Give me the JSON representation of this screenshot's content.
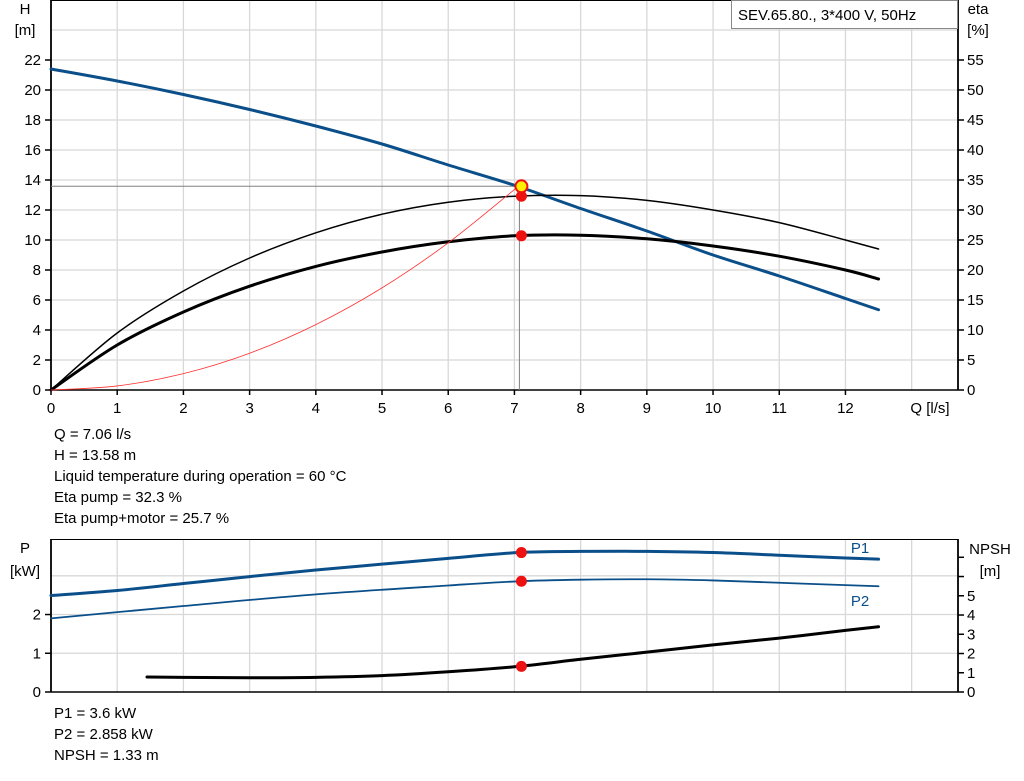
{
  "chart_data": [
    {
      "type": "line",
      "title": "SEV.65.80., 3*400 V, 50Hz",
      "xlabel": "Q [l/s]",
      "ylabel": [
        "H",
        "[m]"
      ],
      "y2label": [
        "eta",
        "[%]"
      ],
      "xlim": [
        0,
        13.7
      ],
      "ylim": [
        0,
        26
      ],
      "y2lim": [
        0,
        65
      ],
      "xticks": [
        0,
        1,
        2,
        3,
        4,
        5,
        6,
        7,
        8,
        9,
        10,
        11,
        12
      ],
      "yticks": [
        0,
        2,
        4,
        6,
        8,
        10,
        12,
        14,
        16,
        18,
        20,
        22
      ],
      "y2ticks": [
        0,
        5,
        10,
        15,
        20,
        25,
        30,
        35,
        40,
        45,
        50,
        55
      ],
      "grid": true,
      "series": [
        {
          "id": "H",
          "axis": "left",
          "color": "#0b4f8a",
          "width": 3,
          "x": [
            0,
            1,
            2,
            3,
            4,
            5,
            6,
            7,
            8,
            9,
            10,
            11,
            12,
            12.5
          ],
          "y": [
            21.4,
            20.6,
            19.7,
            18.7,
            17.6,
            16.4,
            15.0,
            13.65,
            12.1,
            10.6,
            9.0,
            7.6,
            6.1,
            5.35
          ]
        },
        {
          "id": "eta-pump",
          "axis": "right",
          "color": "#000000",
          "width": 1.5,
          "x": [
            0,
            1,
            2,
            3,
            4,
            5,
            6,
            7,
            8,
            9,
            10,
            11,
            12,
            12.5
          ],
          "y": [
            0,
            9.5,
            16.5,
            22,
            26.2,
            29.3,
            31.3,
            32.3,
            32.4,
            31.6,
            30,
            27.9,
            25,
            23.5
          ]
        },
        {
          "id": "eta-total",
          "axis": "right",
          "color": "#000000",
          "width": 3,
          "x": [
            0,
            1,
            2,
            3,
            4,
            5,
            6,
            7,
            8,
            9,
            10,
            11,
            12,
            12.5
          ],
          "y": [
            0,
            7.5,
            13,
            17.3,
            20.6,
            23,
            24.7,
            25.7,
            25.8,
            25.2,
            24,
            22.3,
            20,
            18.5
          ]
        },
        {
          "id": "system",
          "axis": "left",
          "color": "#ff3030",
          "width": 0.8,
          "x": [
            0,
            1,
            2,
            3,
            4,
            5,
            6,
            7.06
          ],
          "y": [
            0,
            0.27,
            1.09,
            2.45,
            4.36,
            6.81,
            9.81,
            13.58
          ]
        }
      ],
      "operating_point": {
        "Q": 7.06,
        "H": 13.58,
        "eta_pump": 32.3,
        "eta_total": 25.7
      }
    },
    {
      "type": "line",
      "ylabel": [
        "P",
        "[kW]"
      ],
      "y2label": [
        "NPSH",
        "[m]"
      ],
      "xlim": [
        0,
        13.7
      ],
      "ylim": [
        0,
        3.95
      ],
      "y2lim": [
        0,
        7.95
      ],
      "yticks": [
        0,
        1,
        2
      ],
      "y2ticks": [
        0,
        1,
        2,
        3,
        4,
        5
      ],
      "y2ticks_unlabeled": [
        6,
        7
      ],
      "grid": true,
      "series": [
        {
          "name": "P1",
          "axis": "left",
          "color": "#0b4f8a",
          "width": 3,
          "x": [
            0,
            1,
            2,
            3,
            4,
            5,
            6,
            7.06,
            8,
            9,
            10,
            11,
            12,
            12.5
          ],
          "y": [
            2.49,
            2.62,
            2.8,
            2.98,
            3.15,
            3.3,
            3.45,
            3.6,
            3.63,
            3.63,
            3.6,
            3.53,
            3.46,
            3.43
          ]
        },
        {
          "name": "P2",
          "axis": "left",
          "color": "#0b4f8a",
          "width": 1.8,
          "x": [
            0,
            2,
            4,
            6,
            7.06,
            8,
            9,
            10,
            11,
            12,
            12.5
          ],
          "y": [
            1.9,
            2.22,
            2.52,
            2.75,
            2.858,
            2.9,
            2.91,
            2.88,
            2.82,
            2.76,
            2.73
          ]
        },
        {
          "id": "NPSH",
          "axis": "right",
          "color": "#000000",
          "width": 3,
          "x": [
            1.45,
            2,
            3,
            4,
            5,
            6,
            7.06,
            8,
            9,
            10,
            11,
            12,
            12.5
          ],
          "y": [
            0.78,
            0.76,
            0.74,
            0.76,
            0.85,
            1.05,
            1.33,
            1.7,
            2.07,
            2.45,
            2.8,
            3.2,
            3.39
          ]
        }
      ],
      "operating_point": {
        "Q": 7.06,
        "P1": 3.6,
        "P2": 2.858,
        "NPSH": 1.33
      }
    }
  ],
  "info_top": [
    "Q = 7.06 l/s",
    "H = 13.58 m",
    "Liquid temperature during operation = 60 °C",
    "Eta pump = 32.3 %",
    "Eta pump+motor = 25.7 %"
  ],
  "info_bottom": [
    "P1 = 3.6 kW",
    "P2 = 2.858 kW",
    "NPSH = 1.33 m"
  ]
}
